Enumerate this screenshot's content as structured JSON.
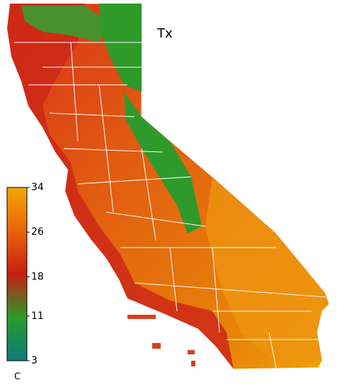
{
  "map": {
    "title": "Tx",
    "colorbar": {
      "lim": [
        3,
        34
      ],
      "ticks": [
        34,
        26,
        18,
        11,
        3
      ],
      "unit": "C",
      "colors": [
        "#0f7a78",
        "#2a9a2a",
        "#c81e14",
        "#e8640c",
        "#f2a800"
      ]
    }
  }
}
